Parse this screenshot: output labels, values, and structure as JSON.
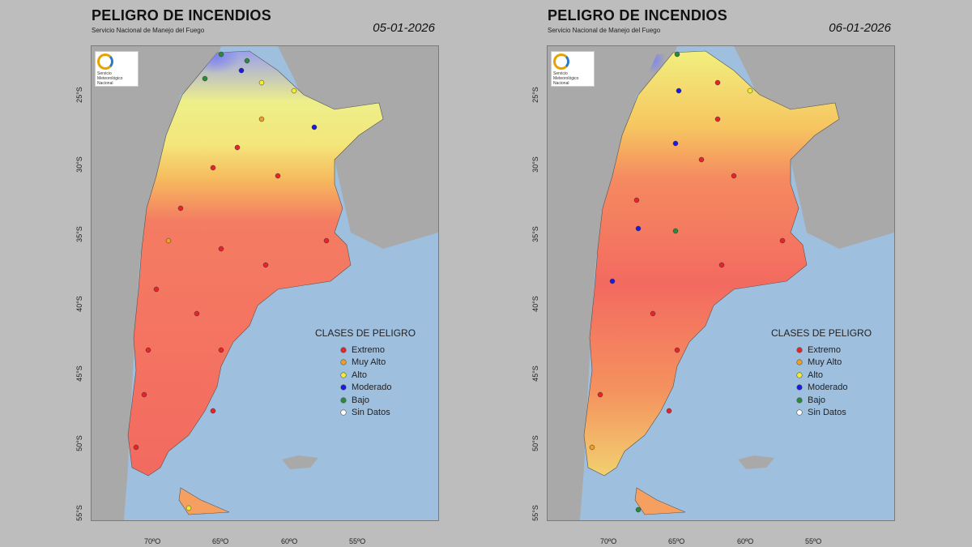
{
  "panels": [
    {
      "title": "PELIGRO DE INCENDIOS",
      "subtitle": "Servicio Nacional de Manejo del Fuego",
      "date": "05-01-2026",
      "logo_text": "Servicio Meteorológico Nacional",
      "lat_labels": [
        "25°S",
        "30°S",
        "35°S",
        "40°S",
        "45°S",
        "50°S",
        "55°S"
      ],
      "lon_labels": [
        "70ºO",
        "65ºO",
        "60ºO",
        "55ºO"
      ]
    },
    {
      "title": "PELIGRO DE INCENDIOS",
      "subtitle": "Servicio Nacional de Manejo del Fuego",
      "date": "06-01-2026",
      "logo_text": "Servicio Meteorológico Nacional",
      "lat_labels": [
        "25°S",
        "30°S",
        "35°S",
        "40°S",
        "45°S",
        "50°S",
        "55°S"
      ],
      "lon_labels": [
        "70ºO",
        "65ºO",
        "60ºO",
        "55ºO"
      ]
    }
  ],
  "legend": {
    "title": "CLASES DE PELIGRO",
    "items": [
      {
        "label": "Extremo",
        "color": "#e8232a"
      },
      {
        "label": "Muy Alto",
        "color": "#f0a020"
      },
      {
        "label": "Alto",
        "color": "#f4ee30"
      },
      {
        "label": "Moderado",
        "color": "#1a1ae0"
      },
      {
        "label": "Bajo",
        "color": "#2a8a3a"
      },
      {
        "label": "Sin Datos",
        "color": "#ffffff"
      }
    ]
  },
  "colors": {
    "ocean": "#9fbfdf",
    "land_outside": "#a9a9a9",
    "extremo_fill": "#f36a60",
    "muy_alto_fill": "#f6b45a",
    "alto_fill": "#f1ef7e",
    "moderado_fill": "#8c8ef0"
  }
}
